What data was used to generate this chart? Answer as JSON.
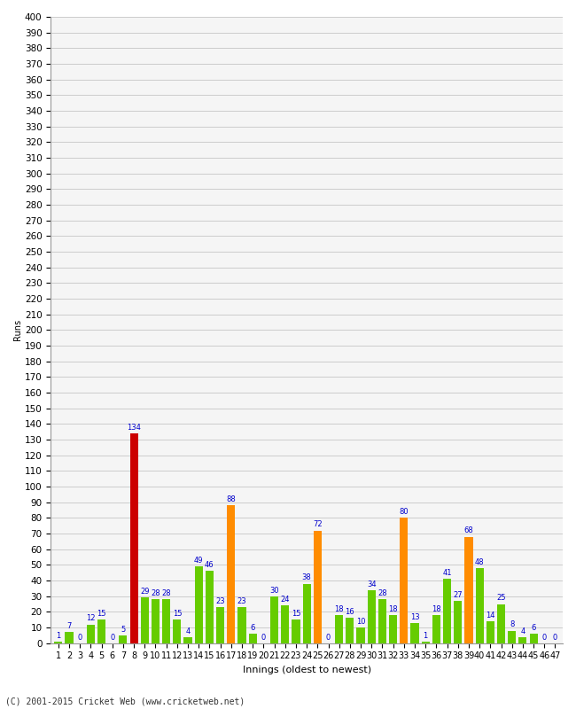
{
  "xlabel": "Innings (oldest to newest)",
  "ylabel": "Runs",
  "footer": "(C) 2001-2015 Cricket Web (www.cricketweb.net)",
  "innings_labels": [
    "1",
    "2",
    "3",
    "4",
    "5",
    "6",
    "7",
    "8",
    "9",
    "10",
    "11",
    "12",
    "13",
    "14",
    "15",
    "16",
    "17",
    "18",
    "19",
    "20",
    "21",
    "22",
    "23",
    "24",
    "25",
    "26",
    "27",
    "28",
    "29",
    "30",
    "31",
    "32",
    "33",
    "34",
    "35",
    "36",
    "37",
    "38",
    "39",
    "40",
    "41",
    "42",
    "43",
    "44",
    "45",
    "46",
    "47"
  ],
  "values": [
    1,
    7,
    0,
    12,
    15,
    0,
    5,
    134,
    29,
    28,
    28,
    15,
    4,
    49,
    46,
    23,
    88,
    23,
    6,
    0,
    30,
    24,
    15,
    38,
    72,
    0,
    18,
    16,
    10,
    34,
    28,
    18,
    80,
    13,
    1,
    18,
    41,
    27,
    68,
    48,
    14,
    25,
    8,
    4,
    6,
    0,
    0
  ],
  "ylim": [
    0,
    400
  ],
  "background_color": "#ffffff",
  "plot_bg_color": "#f5f5f5",
  "grid_color": "#cccccc",
  "bar_color_normal": "#66cc00",
  "bar_color_fifty": "#ff8c00",
  "bar_color_hundred": "#cc0000",
  "label_color": "#0000cc",
  "label_fontsize": 6.0,
  "axis_tick_fontsize": 7.5,
  "xlabel_fontsize": 8,
  "ylabel_fontsize": 7,
  "footer_fontsize": 7
}
